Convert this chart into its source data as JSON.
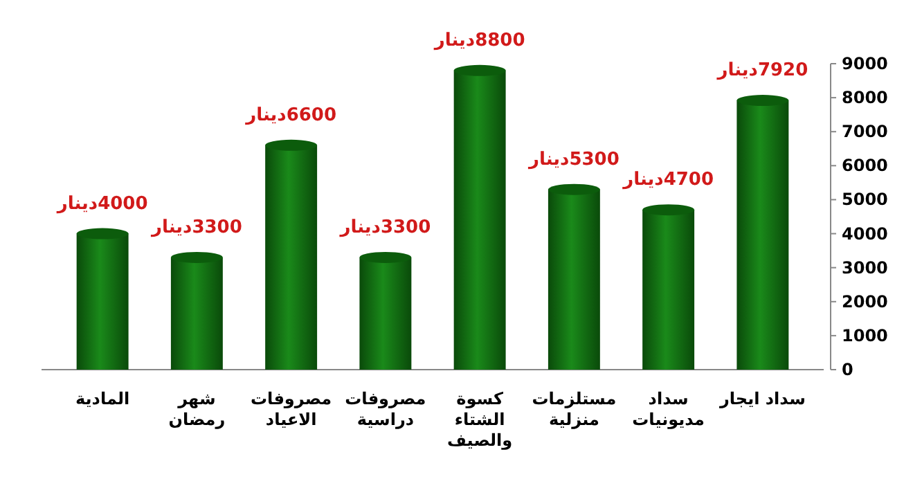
{
  "chart_data": {
    "type": "bar",
    "categories": [
      "المادية",
      "شهر\nرمضان",
      "مصروفات\nالاعياد",
      "مصروفات\nدراسية",
      "كسوة\nالشتاء\nوالصيف",
      "مستلزمات\nمنزلية",
      "سداد\nمديونيات",
      "سداد ايجار"
    ],
    "values": [
      4000,
      3300,
      6600,
      3300,
      8800,
      5300,
      4700,
      7920
    ],
    "value_labels": [
      "4000دينار",
      "3300دينار",
      "6600دينار",
      "3300دينار",
      "8800دينار",
      "5300دينار",
      "4700دينار",
      "7920دينار"
    ],
    "color": "#1a8a1a",
    "ylim": [
      0,
      9000
    ],
    "yticks": [
      0,
      1000,
      2000,
      3000,
      4000,
      5000,
      6000,
      7000,
      8000,
      9000
    ],
    "grid": false
  }
}
